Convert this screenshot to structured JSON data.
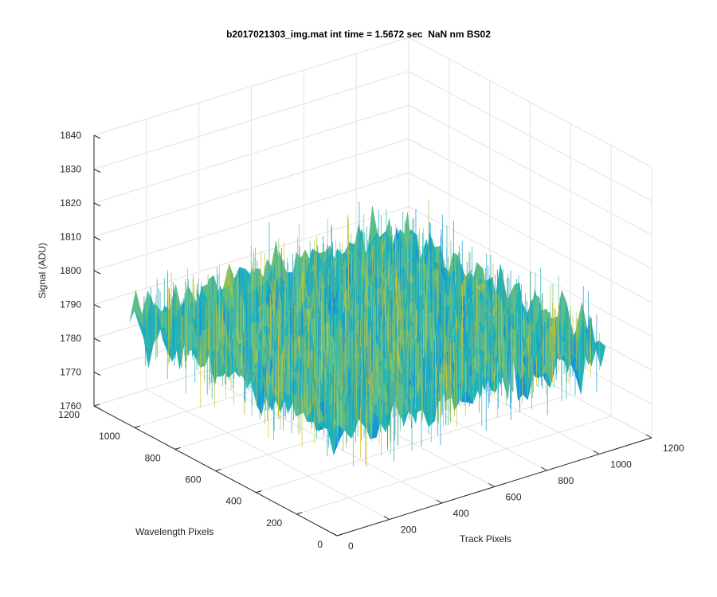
{
  "chart_data": {
    "type": "surface",
    "title": "b2017021303_img.mat int time = 1.5672 sec  NaN nm BS02",
    "xlabel": "Wavelength Pixels",
    "ylabel": "Track Pixels",
    "zlabel": "Signal (ADU)",
    "xlim": [
      0,
      1200
    ],
    "ylim": [
      0,
      1200
    ],
    "zlim": [
      1760,
      1840
    ],
    "x_ticks": [
      "0",
      "200",
      "400",
      "600",
      "800",
      "1000",
      "1200"
    ],
    "y_ticks": [
      "0",
      "200",
      "400",
      "600",
      "800",
      "1000",
      "1200"
    ],
    "z_ticks": [
      "1760",
      "1770",
      "1780",
      "1790",
      "1800",
      "1810",
      "1820",
      "1830",
      "1840"
    ],
    "surface_extent": {
      "wavelength": [
        0,
        1024
      ],
      "track": [
        0,
        1024
      ]
    },
    "signal_mean": 1791,
    "signal_range": [
      1772,
      1825
    ],
    "grid": true,
    "colormap": [
      "#0072bd",
      "#1597d6",
      "#23b2b6",
      "#5cbd8a",
      "#9bc24e",
      "#d6c233"
    ]
  }
}
